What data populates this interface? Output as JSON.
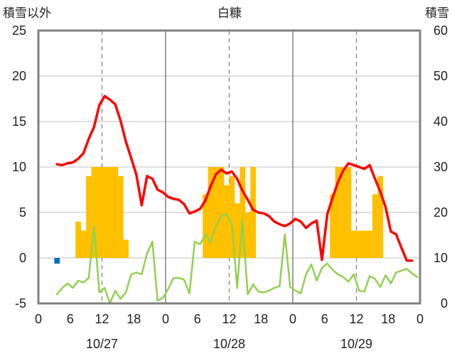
{
  "chart_data": {
    "type": "bar+line",
    "title": "白糠",
    "left_axis": {
      "label": "積雪以外",
      "ticks": [
        "25",
        "20",
        "15",
        "10",
        "5",
        "0",
        "-5"
      ],
      "ylim": [
        -5,
        25
      ]
    },
    "right_axis": {
      "label": "積雪",
      "ticks": [
        "60",
        "50",
        "40",
        "30",
        "20",
        "10",
        "0"
      ],
      "ylim": [
        0,
        60
      ]
    },
    "x_ticks": [
      "0",
      "6",
      "12",
      "18",
      "0",
      "6",
      "12",
      "18",
      "0",
      "6",
      "12",
      "18",
      "0"
    ],
    "date_labels": [
      "10/27",
      "10/28",
      "10/29"
    ],
    "series": [
      {
        "color": "#FFC000",
        "kind": "bar",
        "axis": "left",
        "values": [
          null,
          null,
          null,
          null,
          null,
          null,
          null,
          4,
          3,
          9,
          10,
          10,
          10,
          10,
          10,
          9,
          2,
          null,
          null,
          null,
          null,
          null,
          null,
          null,
          null,
          null,
          null,
          null,
          null,
          null,
          null,
          7,
          10,
          10,
          10,
          8,
          9,
          6,
          10,
          5,
          10,
          null,
          null,
          null,
          null,
          null,
          null,
          null,
          null,
          null,
          null,
          null,
          null,
          null,
          null,
          7,
          10,
          10,
          10,
          3,
          3,
          3,
          3,
          7,
          9,
          null,
          null,
          null,
          null,
          null,
          null,
          null,
          null
        ]
      },
      {
        "color": "#0070C0",
        "kind": "bar",
        "axis": "left",
        "values": [
          null,
          null,
          null,
          -0.2,
          null,
          null,
          null,
          null,
          null,
          null,
          null,
          null,
          null,
          null,
          null,
          null,
          null,
          null,
          null,
          null,
          null,
          null,
          null,
          null,
          null,
          null,
          null,
          null,
          null,
          null,
          null,
          null,
          null,
          null,
          null,
          null,
          null,
          null,
          null,
          null,
          null,
          null,
          null,
          null,
          null,
          null,
          null,
          null,
          null,
          null,
          null,
          null,
          null,
          null,
          null,
          null,
          null,
          null,
          null,
          null,
          null,
          null,
          null,
          null,
          null,
          null,
          null,
          null,
          null,
          null,
          null,
          null
        ]
      },
      {
        "color": "#FF0000",
        "kind": "line",
        "axis": "left",
        "values": [
          null,
          null,
          null,
          10.3,
          10.2,
          10.4,
          10.5,
          10.9,
          11.5,
          13.1,
          14.4,
          16.8,
          17.8,
          17.4,
          16.9,
          15.1,
          12.8,
          11.0,
          9.1,
          5.8,
          9.0,
          8.7,
          7.5,
          7.2,
          6.7,
          6.5,
          6.4,
          5.9,
          4.9,
          5.1,
          5.4,
          6.3,
          7.9,
          9.2,
          9.7,
          9.3,
          9.5,
          8.7,
          7.4,
          6.4,
          5.3,
          5.0,
          4.9,
          4.6,
          4.0,
          3.7,
          3.5,
          3.8,
          4.3,
          4.0,
          3.3,
          3.8,
          4.1,
          -0.2,
          4.8,
          6.6,
          8.3,
          9.6,
          10.4,
          10.2,
          10.0,
          9.8,
          10.2,
          8.7,
          7.3,
          5.6,
          2.9,
          2.6,
          1.1,
          -0.3,
          -0.3,
          null
        ]
      },
      {
        "color": "#92D050",
        "kind": "line",
        "axis": "left",
        "values": [
          null,
          null,
          null,
          -4.0,
          -3.3,
          -2.8,
          -3.3,
          -2.5,
          -2.7,
          -2.2,
          3.5,
          -3.8,
          -3.3,
          -5.0,
          -3.6,
          -4.5,
          -3.8,
          -1.8,
          -1.6,
          -1.8,
          0.5,
          1.8,
          -4.7,
          -4.4,
          -3.4,
          -2.2,
          -2.2,
          -2.4,
          -3.9,
          1.8,
          1.5,
          2.6,
          1.7,
          3.5,
          4.6,
          4.8,
          3.7,
          -3.3,
          4.2,
          -4.0,
          -2.9,
          -3.7,
          -3.8,
          -3.6,
          -3.3,
          -3.1,
          2.6,
          -3.2,
          -3.6,
          -3.9,
          -1.8,
          -0.7,
          -2.5,
          -1.1,
          -0.6,
          -1.3,
          -1.8,
          -2.1,
          -2.6,
          -1.8,
          -3.6,
          -3.7,
          -2.0,
          -2.3,
          -3.2,
          -1.9,
          -2.8,
          -1.6,
          -1.4,
          -1.2,
          -1.7,
          -2.1
        ]
      },
      {
        "color": "#7030A0",
        "kind": "line",
        "axis": "right",
        "values": [
          null,
          null,
          null,
          null,
          null,
          null,
          null,
          null,
          null,
          null,
          null,
          null,
          null,
          null,
          null,
          null,
          0,
          0,
          0,
          0,
          0,
          0,
          0,
          0,
          0,
          0,
          0,
          0,
          0,
          0,
          0,
          0,
          0,
          0,
          0,
          0,
          0,
          0,
          0,
          0,
          0,
          0,
          0,
          0,
          0,
          0,
          0,
          0,
          0,
          0,
          0,
          0,
          0,
          0,
          0,
          0,
          0,
          0,
          0,
          0,
          0,
          0,
          0,
          0,
          0,
          0,
          0,
          0,
          0,
          0,
          0,
          0
        ]
      }
    ],
    "grid": true
  }
}
